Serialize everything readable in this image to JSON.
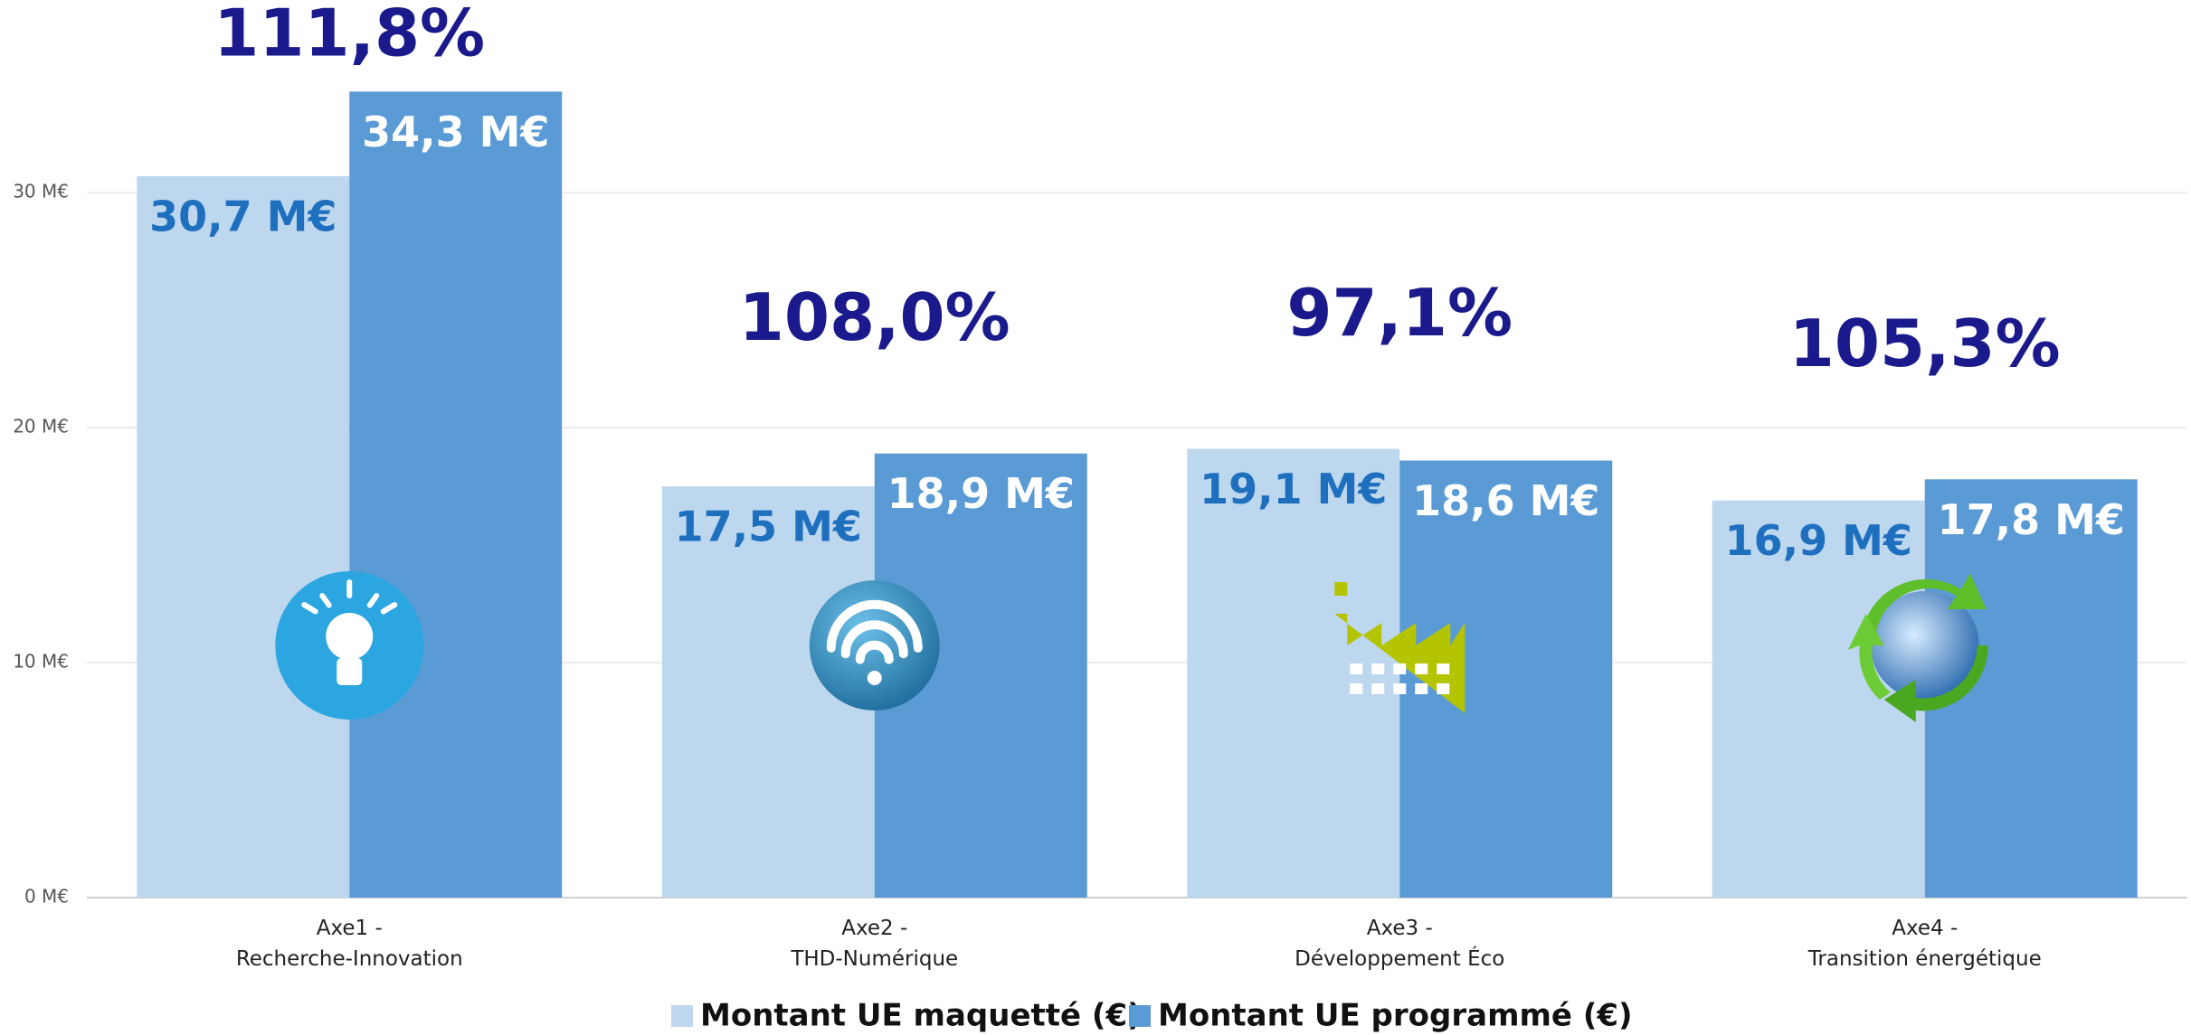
{
  "chart_data": {
    "type": "bar",
    "categories": [
      "Axe1 -\nRecherche-Innovation",
      "Axe2 -\nTHD-Numérique",
      "Axe3 -\nDéveloppement Éco",
      "Axe4 -\nTransition énergétique"
    ],
    "series": [
      {
        "name": "Montant UE maquetté (€)",
        "color": "#bdd7ee",
        "label_color": "#1f6fbf",
        "values": [
          30.7,
          17.5,
          19.1,
          16.9
        ],
        "value_labels": [
          "30,7 M€",
          "17,5 M€",
          "19,1 M€",
          "16,9 M€"
        ]
      },
      {
        "name": "Montant UE programmé (€)",
        "color": "#5b9bd5",
        "label_color": "#ffffff",
        "values": [
          34.3,
          18.9,
          18.6,
          17.8
        ],
        "value_labels": [
          "34,3 M€",
          "18,9 M€",
          "18,6 M€",
          "17,8 M€"
        ]
      }
    ],
    "annotations": [
      "111,8%",
      "108,0%",
      "97,1%",
      "105,3%"
    ],
    "ylim": [
      0,
      38.2
    ],
    "yticks": [
      {
        "value": 0,
        "label": "0 M€"
      },
      {
        "value": 10,
        "label": "10 M€"
      },
      {
        "value": 20,
        "label": "20 M€"
      },
      {
        "value": 30,
        "label": "30 M€"
      }
    ],
    "grid": true,
    "legend": "bottom"
  }
}
